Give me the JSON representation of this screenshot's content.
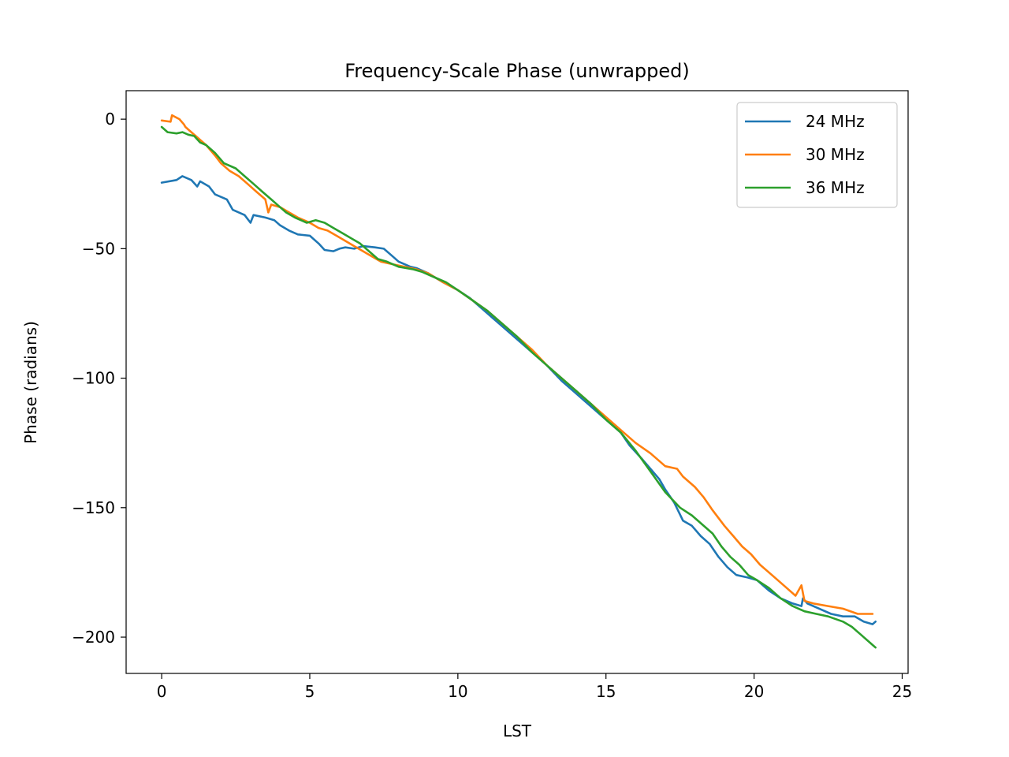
{
  "chart_data": {
    "type": "line",
    "title": "Frequency-Scale Phase (unwrapped)",
    "xlabel": "LST",
    "ylabel": "Phase (radians)",
    "xlim": [
      -1.2,
      25.2
    ],
    "ylim": [
      -214,
      11
    ],
    "xticks": [
      0,
      5,
      10,
      15,
      20,
      25
    ],
    "yticks": [
      0,
      -50,
      -100,
      -150,
      -200
    ],
    "xtick_labels": [
      "0",
      "5",
      "10",
      "15",
      "20",
      "25"
    ],
    "ytick_labels": [
      "0",
      "−50",
      "−100",
      "−150",
      "−200"
    ],
    "grid": false,
    "legend": "top-right",
    "series": [
      {
        "name": "24 MHz",
        "color": "#1f77b4",
        "points": [
          [
            0,
            -24.5
          ],
          [
            0.5,
            -23.5
          ],
          [
            0.7,
            -22
          ],
          [
            1.0,
            -23.5
          ],
          [
            1.2,
            -26
          ],
          [
            1.3,
            -24
          ],
          [
            1.6,
            -26
          ],
          [
            1.8,
            -29
          ],
          [
            2.2,
            -31
          ],
          [
            2.4,
            -35
          ],
          [
            2.8,
            -37
          ],
          [
            3.0,
            -40
          ],
          [
            3.1,
            -37
          ],
          [
            3.5,
            -38
          ],
          [
            3.8,
            -39
          ],
          [
            4.0,
            -41
          ],
          [
            4.3,
            -43
          ],
          [
            4.6,
            -44.5
          ],
          [
            5.0,
            -45
          ],
          [
            5.3,
            -48
          ],
          [
            5.5,
            -50.5
          ],
          [
            5.8,
            -51
          ],
          [
            6.0,
            -50
          ],
          [
            6.2,
            -49.5
          ],
          [
            6.5,
            -50
          ],
          [
            6.8,
            -49
          ],
          [
            7.2,
            -49.5
          ],
          [
            7.5,
            -50
          ],
          [
            7.8,
            -53
          ],
          [
            8.0,
            -55
          ],
          [
            8.4,
            -57
          ],
          [
            8.6,
            -57.5
          ],
          [
            9.0,
            -59.5
          ],
          [
            9.5,
            -63
          ],
          [
            10.0,
            -66
          ],
          [
            10.4,
            -69
          ],
          [
            10.8,
            -73
          ],
          [
            11.2,
            -77
          ],
          [
            11.6,
            -81
          ],
          [
            12.0,
            -85
          ],
          [
            12.5,
            -90
          ],
          [
            13.0,
            -95
          ],
          [
            13.5,
            -101
          ],
          [
            14.0,
            -106
          ],
          [
            14.5,
            -111
          ],
          [
            15.0,
            -116
          ],
          [
            15.5,
            -121
          ],
          [
            15.8,
            -126
          ],
          [
            16.2,
            -131
          ],
          [
            16.5,
            -135
          ],
          [
            16.8,
            -139
          ],
          [
            17.0,
            -143
          ],
          [
            17.3,
            -148
          ],
          [
            17.6,
            -155
          ],
          [
            17.9,
            -157
          ],
          [
            18.2,
            -161
          ],
          [
            18.5,
            -164
          ],
          [
            18.8,
            -169
          ],
          [
            19.1,
            -173
          ],
          [
            19.4,
            -176
          ],
          [
            19.8,
            -177
          ],
          [
            20.1,
            -178
          ],
          [
            20.5,
            -182
          ],
          [
            20.9,
            -185
          ],
          [
            21.3,
            -187
          ],
          [
            21.6,
            -188
          ],
          [
            21.65,
            -185
          ],
          [
            21.8,
            -187
          ],
          [
            22.2,
            -189
          ],
          [
            22.6,
            -191
          ],
          [
            23.0,
            -192
          ],
          [
            23.4,
            -192
          ],
          [
            23.7,
            -194
          ],
          [
            24.0,
            -195
          ],
          [
            24.1,
            -194
          ]
        ]
      },
      {
        "name": "30 MHz",
        "color": "#ff7f0e",
        "points": [
          [
            0,
            -0.5
          ],
          [
            0.3,
            -1
          ],
          [
            0.35,
            1.5
          ],
          [
            0.6,
            0
          ],
          [
            0.75,
            -2
          ],
          [
            0.8,
            -3
          ],
          [
            1.0,
            -5
          ],
          [
            1.2,
            -7
          ],
          [
            1.5,
            -10
          ],
          [
            1.8,
            -14
          ],
          [
            2.0,
            -17
          ],
          [
            2.3,
            -20
          ],
          [
            2.6,
            -22
          ],
          [
            2.9,
            -25
          ],
          [
            3.2,
            -28
          ],
          [
            3.5,
            -31
          ],
          [
            3.6,
            -36
          ],
          [
            3.7,
            -33
          ],
          [
            4.0,
            -34
          ],
          [
            4.3,
            -36
          ],
          [
            4.6,
            -38
          ],
          [
            5.0,
            -40
          ],
          [
            5.3,
            -42
          ],
          [
            5.6,
            -43
          ],
          [
            5.9,
            -45
          ],
          [
            6.2,
            -47
          ],
          [
            6.5,
            -49
          ],
          [
            6.8,
            -51
          ],
          [
            7.1,
            -53
          ],
          [
            7.4,
            -55
          ],
          [
            7.8,
            -56
          ],
          [
            8.2,
            -57
          ],
          [
            8.6,
            -58
          ],
          [
            9.0,
            -59.5
          ],
          [
            9.5,
            -63
          ],
          [
            10.0,
            -66
          ],
          [
            10.5,
            -70
          ],
          [
            11.0,
            -74
          ],
          [
            11.5,
            -79
          ],
          [
            12.0,
            -84
          ],
          [
            12.5,
            -89
          ],
          [
            13.0,
            -95
          ],
          [
            13.5,
            -100
          ],
          [
            14.0,
            -105
          ],
          [
            14.5,
            -110
          ],
          [
            15.0,
            -115
          ],
          [
            15.5,
            -120
          ],
          [
            16.0,
            -125
          ],
          [
            16.5,
            -129
          ],
          [
            17.0,
            -134
          ],
          [
            17.4,
            -135
          ],
          [
            17.6,
            -138
          ],
          [
            18.0,
            -142
          ],
          [
            18.3,
            -146
          ],
          [
            18.6,
            -151
          ],
          [
            19.0,
            -157
          ],
          [
            19.3,
            -161
          ],
          [
            19.6,
            -165
          ],
          [
            19.9,
            -168
          ],
          [
            20.2,
            -172
          ],
          [
            20.6,
            -176
          ],
          [
            21.0,
            -180
          ],
          [
            21.4,
            -184
          ],
          [
            21.6,
            -180
          ],
          [
            21.7,
            -186
          ],
          [
            22.0,
            -187
          ],
          [
            22.5,
            -188
          ],
          [
            23.0,
            -189
          ],
          [
            23.5,
            -191
          ],
          [
            24.0,
            -191
          ]
        ]
      },
      {
        "name": "36 MHz",
        "color": "#2ca02c",
        "points": [
          [
            0,
            -3
          ],
          [
            0.2,
            -5
          ],
          [
            0.5,
            -5.5
          ],
          [
            0.7,
            -5
          ],
          [
            0.9,
            -6
          ],
          [
            1.1,
            -6.5
          ],
          [
            1.3,
            -9
          ],
          [
            1.5,
            -10
          ],
          [
            1.8,
            -13
          ],
          [
            2.1,
            -17
          ],
          [
            2.5,
            -19
          ],
          [
            2.8,
            -22
          ],
          [
            3.1,
            -25
          ],
          [
            3.4,
            -28
          ],
          [
            3.7,
            -31
          ],
          [
            4.0,
            -34
          ],
          [
            4.2,
            -36
          ],
          [
            4.5,
            -38
          ],
          [
            4.9,
            -40
          ],
          [
            5.2,
            -39
          ],
          [
            5.5,
            -40
          ],
          [
            5.8,
            -42
          ],
          [
            6.1,
            -44
          ],
          [
            6.4,
            -46
          ],
          [
            6.7,
            -48
          ],
          [
            7.0,
            -51
          ],
          [
            7.3,
            -54
          ],
          [
            7.6,
            -55
          ],
          [
            8.0,
            -57
          ],
          [
            8.5,
            -58
          ],
          [
            8.8,
            -59
          ],
          [
            9.2,
            -61
          ],
          [
            9.6,
            -63
          ],
          [
            10.0,
            -66
          ],
          [
            10.5,
            -70
          ],
          [
            11.0,
            -74
          ],
          [
            11.5,
            -79
          ],
          [
            12.0,
            -84
          ],
          [
            12.5,
            -90
          ],
          [
            13.0,
            -95
          ],
          [
            13.5,
            -100
          ],
          [
            14.0,
            -105
          ],
          [
            14.5,
            -110
          ],
          [
            15.0,
            -116
          ],
          [
            15.5,
            -121
          ],
          [
            16.0,
            -128
          ],
          [
            16.5,
            -136
          ],
          [
            17.0,
            -144
          ],
          [
            17.5,
            -150
          ],
          [
            17.9,
            -153
          ],
          [
            18.2,
            -156
          ],
          [
            18.6,
            -160
          ],
          [
            18.9,
            -165
          ],
          [
            19.2,
            -169
          ],
          [
            19.5,
            -172
          ],
          [
            19.8,
            -176
          ],
          [
            20.1,
            -178
          ],
          [
            20.5,
            -181
          ],
          [
            20.9,
            -185
          ],
          [
            21.3,
            -188
          ],
          [
            21.7,
            -190
          ],
          [
            22.1,
            -191
          ],
          [
            22.5,
            -192
          ],
          [
            23.0,
            -194
          ],
          [
            23.3,
            -196
          ],
          [
            23.6,
            -199
          ],
          [
            24.0,
            -203
          ],
          [
            24.1,
            -204
          ]
        ]
      }
    ]
  }
}
